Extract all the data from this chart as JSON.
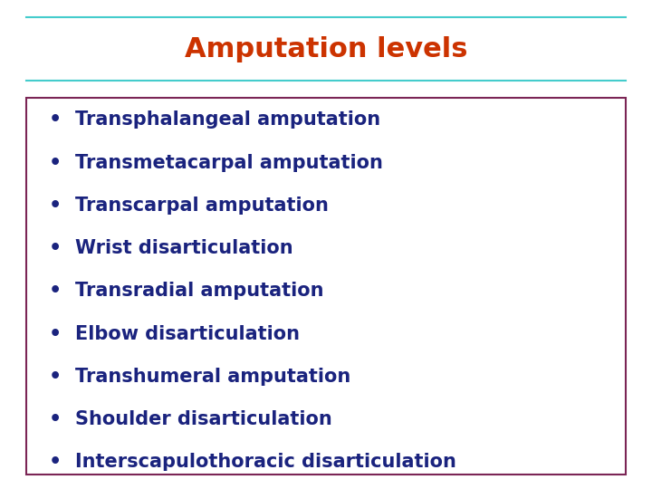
{
  "title": "Amputation levels",
  "title_color": "#CC3300",
  "title_fontsize": 22,
  "title_line_color": "#44CCCC",
  "content_box_color": "#7B2555",
  "background_color": "#FFFFFF",
  "bullet_items": [
    "Transphalangeal amputation",
    "Transmetacarpal amputation",
    "Transcarpal amputation",
    "Wrist disarticulation",
    "Transradial amputation",
    "Elbow disarticulation",
    "Transhumeral amputation",
    "Shoulder disarticulation",
    "Interscapulothoracic disarticulation"
  ],
  "bullet_color": "#1A237E",
  "bullet_fontsize": 15,
  "bullet_symbol": "•",
  "fig_width": 7.2,
  "fig_height": 5.4,
  "dpi": 100
}
